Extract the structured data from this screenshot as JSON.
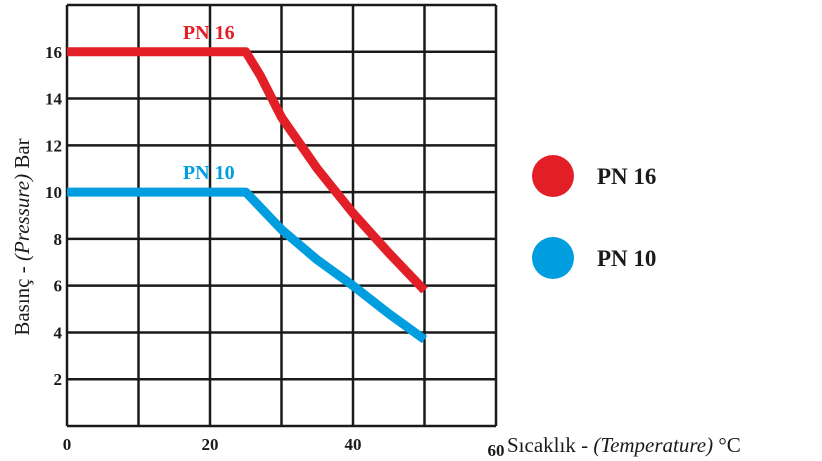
{
  "chart_data": {
    "type": "line",
    "xlabel": {
      "main": "Sıcaklık - ",
      "italic": "(Temperature)",
      "unit": " °C"
    },
    "ylabel": {
      "main": "Basınç - ",
      "italic": "(Pressure)",
      "unit": " Bar"
    },
    "xlim": [
      0,
      60
    ],
    "ylim": [
      0,
      18
    ],
    "x_ticks": [
      {
        "value": 0,
        "label": "0"
      },
      {
        "value": 20,
        "label": "20"
      },
      {
        "value": 40,
        "label": "40"
      },
      {
        "value": 60,
        "label": "60"
      }
    ],
    "y_ticks": [
      {
        "value": 2,
        "label": "2"
      },
      {
        "value": 4,
        "label": "4"
      },
      {
        "value": 6,
        "label": "6"
      },
      {
        "value": 8,
        "label": "8"
      },
      {
        "value": 10,
        "label": "10"
      },
      {
        "value": 12,
        "label": "12"
      },
      {
        "value": 14,
        "label": "14"
      },
      {
        "value": 16,
        "label": "16"
      }
    ],
    "x_grid": [
      0,
      10,
      20,
      30,
      40,
      50,
      60
    ],
    "y_grid": [
      0,
      2,
      4,
      6,
      8,
      10,
      12,
      14,
      16,
      18
    ],
    "grid": true,
    "legend_position": "right",
    "series": [
      {
        "name": "PN 16",
        "color": "#e21f26",
        "x": [
          0,
          25,
          27,
          30,
          35,
          40,
          45,
          50
        ],
        "y": [
          16,
          16,
          15,
          13.2,
          11.0,
          9.1,
          7.4,
          5.8
        ]
      },
      {
        "name": "PN 10",
        "color": "#009ddf",
        "x": [
          0,
          25,
          30,
          35,
          40,
          45,
          50
        ],
        "y": [
          10,
          10,
          8.4,
          7.1,
          6.0,
          4.8,
          3.7
        ]
      }
    ]
  }
}
